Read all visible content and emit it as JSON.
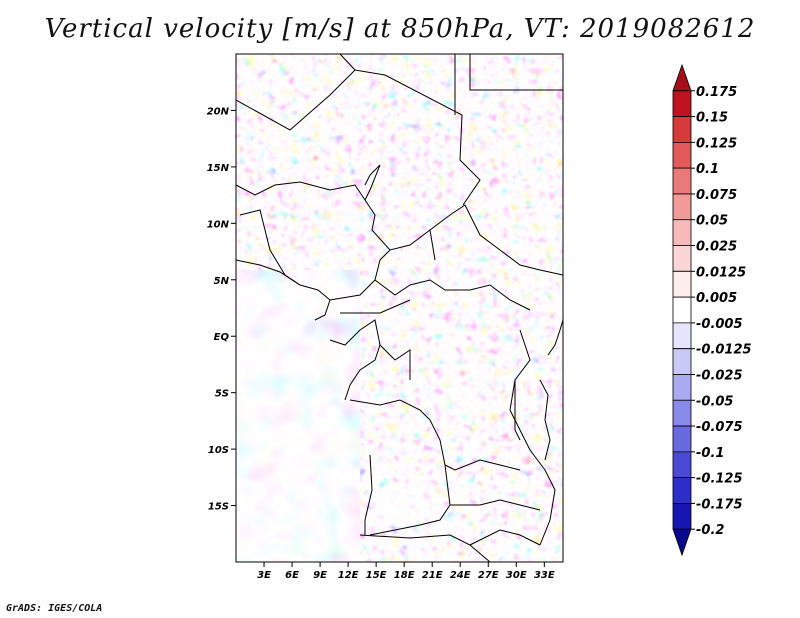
{
  "title": "Vertical velocity [m/s] at 850hPa, VT: 2019082612",
  "credit": "GrADS: IGES/COLA",
  "map": {
    "lat_labels": [
      "20N",
      "15N",
      "10N",
      "5N",
      "EQ",
      "5S",
      "10S",
      "15S"
    ],
    "lon_labels": [
      "3E",
      "6E",
      "9E",
      "12E",
      "15E",
      "18E",
      "21E",
      "24E",
      "27E",
      "30E",
      "33E"
    ],
    "lat_values": [
      20,
      15,
      10,
      5,
      0,
      -5,
      -10,
      -15
    ],
    "lon_values": [
      3,
      6,
      9,
      12,
      15,
      18,
      21,
      24,
      27,
      30,
      33
    ],
    "lon_range": [
      0,
      35
    ],
    "lat_range": [
      -20,
      25
    ]
  },
  "colorbar": {
    "labels": [
      "0.175",
      "0.15",
      "0.125",
      "0.1",
      "0.075",
      "0.05",
      "0.025",
      "0.0125",
      "0.005",
      "-0.005",
      "-0.0125",
      "-0.025",
      "-0.05",
      "-0.075",
      "-0.1",
      "-0.125",
      "-0.175",
      "-0.2"
    ],
    "colors": [
      "#a50f15",
      "#c1121f",
      "#d63a3a",
      "#e35a5a",
      "#ea7a7a",
      "#f19a9a",
      "#f6baba",
      "#fad6d6",
      "#fdeeee",
      "#ffffff",
      "#e4e4fb",
      "#c9c9f5",
      "#aaaaf0",
      "#8a8ae8",
      "#6a6ae0",
      "#4a4ad6",
      "#2e2ec8",
      "#1616b0",
      "#08088a"
    ]
  }
}
